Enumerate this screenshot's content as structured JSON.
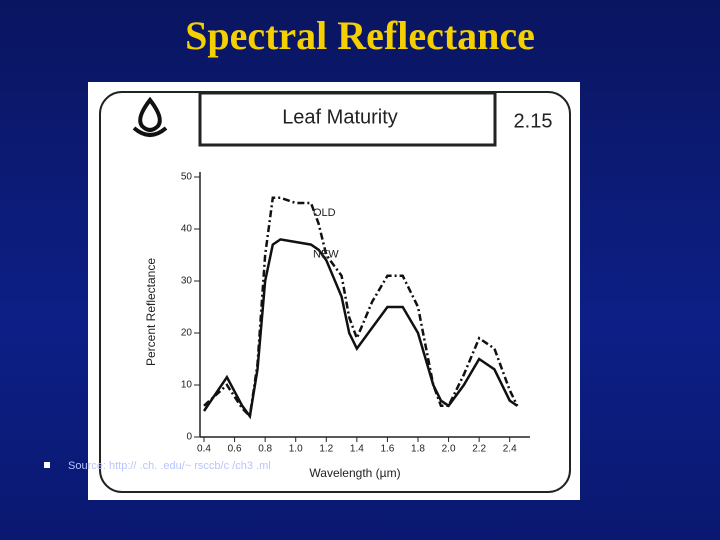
{
  "slide_title": "Spectral Reflectance",
  "source": "Source: http://  .ch.  .edu/~ rsccb/c /ch3 .ml",
  "chart_data": {
    "type": "line",
    "title": "Leaf Maturity",
    "figure_number": "2.15",
    "y_label": "Percent Reflectance",
    "x_label": "Wavelength (µm)",
    "x": [
      0.4,
      0.55,
      0.65,
      0.7,
      0.75,
      0.8,
      0.85,
      0.9,
      1.0,
      1.1,
      1.15,
      1.2,
      1.3,
      1.35,
      1.4,
      1.5,
      1.6,
      1.7,
      1.8,
      1.9,
      1.95,
      2.0,
      2.1,
      2.2,
      2.3,
      2.4,
      2.45
    ],
    "series": [
      {
        "name": "OLD",
        "color": "#111111",
        "style": "dash-dot",
        "values": [
          6,
          10,
          5.5,
          4,
          14,
          35,
          46,
          46,
          45,
          45,
          41,
          35,
          31,
          23,
          19,
          26,
          31,
          31,
          25,
          10,
          6,
          6,
          12,
          19,
          17,
          9,
          6
        ]
      },
      {
        "name": "NEW",
        "color": "#111111",
        "style": "solid",
        "values": [
          5,
          11.5,
          6,
          4,
          13,
          30,
          37,
          38,
          37.5,
          37,
          36,
          34,
          27,
          20,
          17,
          21,
          25,
          25,
          20,
          10,
          7,
          6,
          10,
          15,
          13,
          7,
          6
        ]
      }
    ],
    "xlim": [
      0.4,
      2.5
    ],
    "ylim": [
      0,
      50
    ],
    "xticks": [
      0.4,
      0.6,
      0.8,
      {
        "value": 1,
        "label": "1.0"
      },
      1.2,
      1.4,
      1.6,
      1.8,
      {
        "value": 2,
        "label": "2.0"
      },
      2.2,
      2.4
    ],
    "yticks": [
      0,
      10,
      20,
      30,
      40,
      50
    ]
  }
}
